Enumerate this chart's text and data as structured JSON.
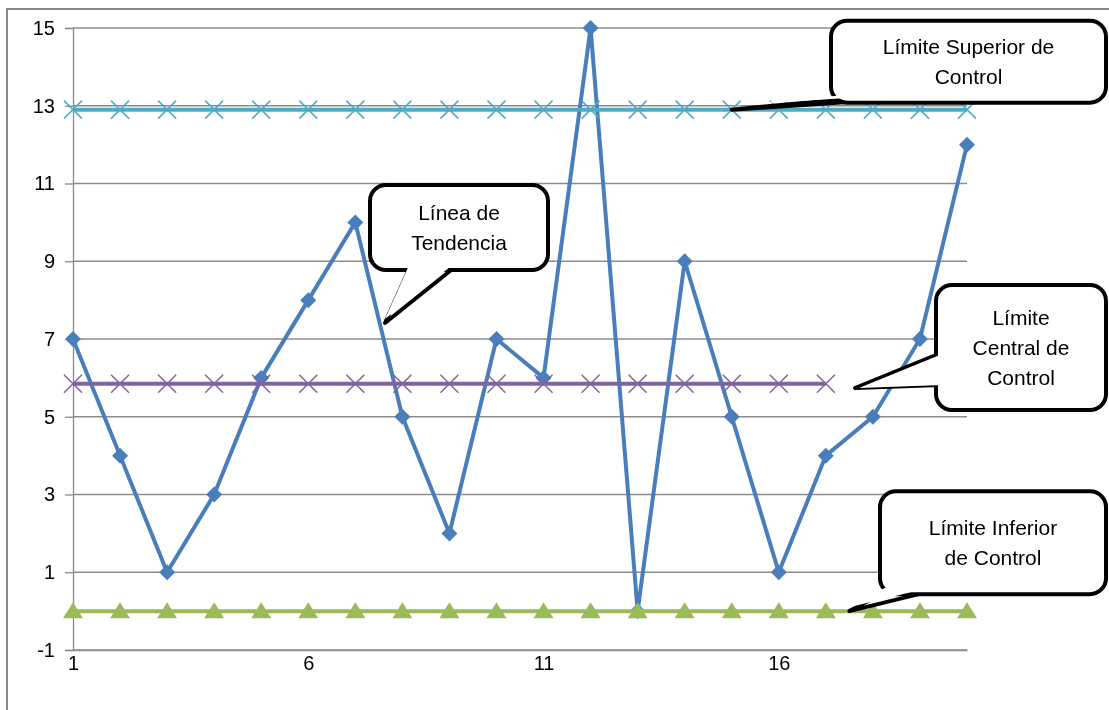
{
  "chart_data": {
    "type": "line",
    "x": [
      1,
      2,
      3,
      4,
      5,
      6,
      7,
      8,
      9,
      10,
      11,
      12,
      13,
      14,
      15,
      16,
      17,
      18,
      19,
      20
    ],
    "xlim": [
      1,
      20
    ],
    "xticks": [
      1,
      6,
      11,
      16
    ],
    "ylim": [
      -1,
      15
    ],
    "yticks": [
      -1,
      1,
      3,
      5,
      7,
      9,
      11,
      13,
      15
    ],
    "grid": "y",
    "series": [
      {
        "color": "#4a7ebb",
        "marker": "diamond",
        "values": [
          7,
          4,
          1,
          3,
          6,
          8,
          10,
          5,
          2,
          7,
          6,
          15,
          0,
          9,
          5,
          1,
          4,
          5,
          7,
          12
        ]
      },
      {
        "color": "#4bacc6",
        "marker": "cross",
        "values": [
          12.9,
          12.9,
          12.9,
          12.9,
          12.9,
          12.9,
          12.9,
          12.9,
          12.9,
          12.9,
          12.9,
          12.9,
          12.9,
          12.9,
          12.9,
          12.9,
          12.9,
          12.9,
          12.9,
          12.9
        ]
      },
      {
        "color": "#8064a2",
        "marker": "cross",
        "values": [
          5.85,
          5.85,
          5.85,
          5.85,
          5.85,
          5.85,
          5.85,
          5.85,
          5.85,
          5.85,
          5.85,
          5.85,
          5.85,
          5.85,
          5.85,
          5.85,
          5.85,
          null,
          null,
          null
        ]
      },
      {
        "color": "#9bbb59",
        "marker": "triangle",
        "values": [
          0,
          0,
          0,
          0,
          0,
          0,
          0,
          0,
          0,
          0,
          0,
          0,
          0,
          0,
          0,
          0,
          0,
          0,
          0,
          0
        ]
      }
    ],
    "annotations": [
      {
        "text": "Límite Superior de Control",
        "x": 15,
        "y": 12.9
      },
      "Línea de Tendencia",
      "Límite Central de Control",
      {
        "text": "Límite Inferior de Control",
        "x": 17.5,
        "y": 0
      }
    ]
  }
}
